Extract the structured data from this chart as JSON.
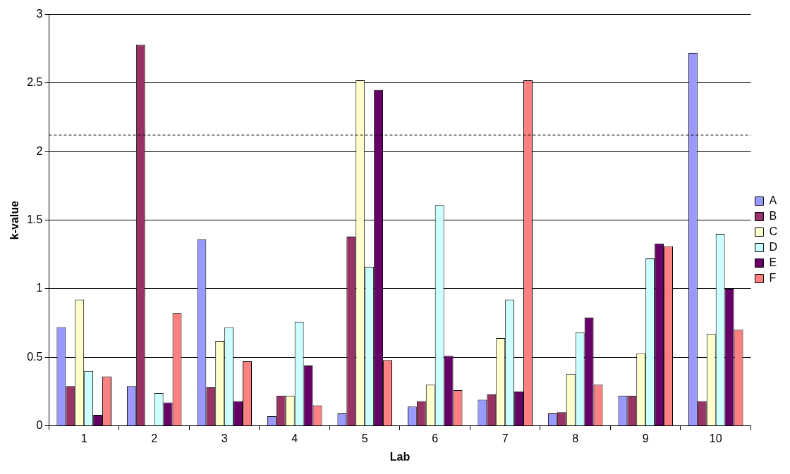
{
  "chart_data": {
    "type": "bar",
    "xlabel": "Lab",
    "ylabel": "k-value",
    "categories": [
      "1",
      "2",
      "3",
      "4",
      "5",
      "6",
      "7",
      "8",
      "9",
      "10"
    ],
    "series": [
      {
        "name": "A",
        "color": "#9999ff",
        "values": [
          0.72,
          0.29,
          1.36,
          0.07,
          0.09,
          0.14,
          0.19,
          0.09,
          0.22,
          2.72
        ]
      },
      {
        "name": "B",
        "color": "#993366",
        "values": [
          0.29,
          2.78,
          0.28,
          0.22,
          1.38,
          0.18,
          0.23,
          0.1,
          0.22,
          0.18
        ]
      },
      {
        "name": "C",
        "color": "#ffffcc",
        "values": [
          0.92,
          null,
          0.62,
          0.22,
          2.52,
          0.3,
          0.64,
          0.38,
          0.53,
          0.67
        ]
      },
      {
        "name": "D",
        "color": "#ccffff",
        "values": [
          0.4,
          0.24,
          0.72,
          0.76,
          1.16,
          1.61,
          0.92,
          0.68,
          1.22,
          1.4
        ]
      },
      {
        "name": "E",
        "color": "#660066",
        "values": [
          0.08,
          0.17,
          0.18,
          0.44,
          2.45,
          0.51,
          0.25,
          0.79,
          1.33,
          1.0
        ]
      },
      {
        "name": "F",
        "color": "#ff8080",
        "values": [
          0.36,
          0.82,
          0.47,
          0.15,
          0.48,
          0.26,
          2.52,
          0.3,
          1.31,
          0.7
        ]
      }
    ],
    "ylim": [
      0,
      3
    ],
    "yticks": [
      0,
      0.5,
      1,
      1.5,
      2,
      2.5,
      3
    ],
    "grid": "y",
    "legend": "right",
    "ref_lines": [
      {
        "axis": "y",
        "value": 2.12,
        "color": "#000000",
        "line_style": "dashed"
      }
    ]
  }
}
